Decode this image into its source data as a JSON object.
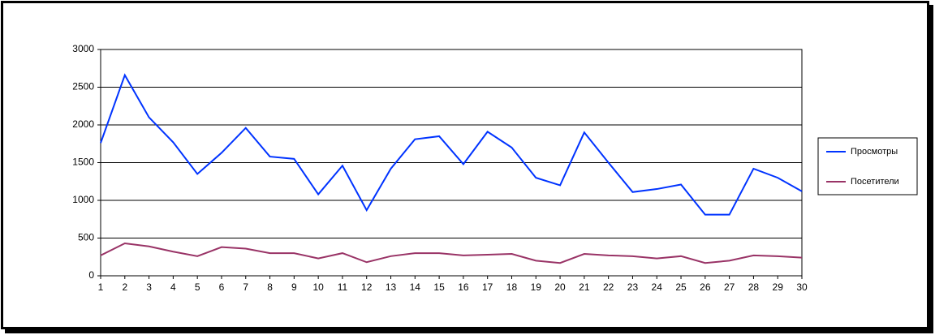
{
  "chart_data": {
    "type": "line",
    "categories": [
      "1",
      "2",
      "3",
      "4",
      "5",
      "6",
      "7",
      "8",
      "9",
      "10",
      "11",
      "12",
      "13",
      "14",
      "15",
      "16",
      "17",
      "18",
      "19",
      "20",
      "21",
      "22",
      "23",
      "24",
      "25",
      "26",
      "27",
      "28",
      "29",
      "30"
    ],
    "series": [
      {
        "name": "Просмотры",
        "color": "#0033ff",
        "values": [
          1760,
          2660,
          2100,
          1770,
          1350,
          1630,
          1960,
          1580,
          1550,
          1080,
          1460,
          870,
          1420,
          1810,
          1850,
          1480,
          1910,
          1700,
          1300,
          1200,
          1900,
          1500,
          1110,
          1150,
          1210,
          810,
          810,
          1420,
          1300,
          1120
        ]
      },
      {
        "name": "Посетители",
        "color": "#993366",
        "values": [
          270,
          430,
          390,
          320,
          260,
          380,
          360,
          300,
          300,
          230,
          300,
          180,
          260,
          300,
          300,
          270,
          280,
          290,
          200,
          170,
          290,
          270,
          260,
          230,
          260,
          170,
          200,
          270,
          260,
          240
        ]
      }
    ],
    "ylim": [
      0,
      3000
    ],
    "yticks": [
      0,
      500,
      1000,
      1500,
      2000,
      2500,
      3000
    ],
    "grid": true,
    "legend": "right"
  }
}
